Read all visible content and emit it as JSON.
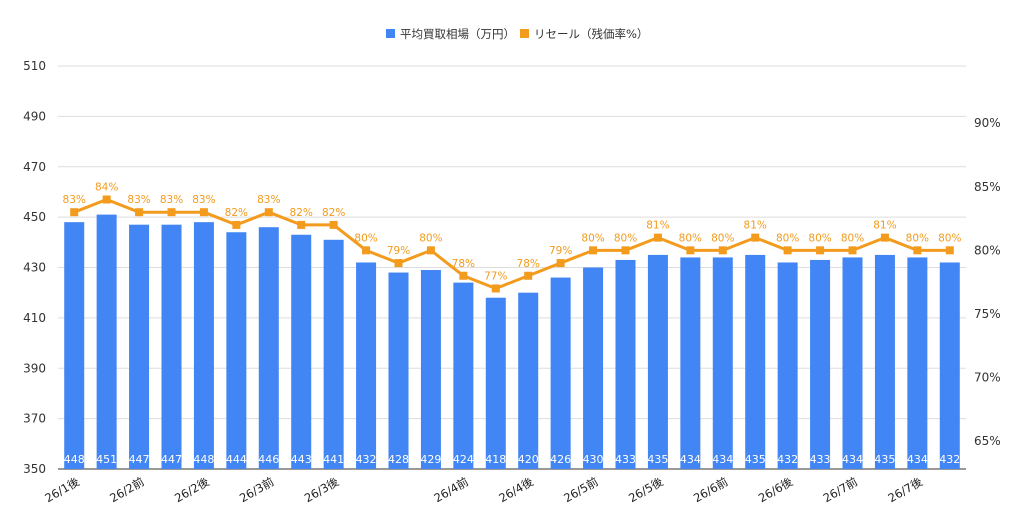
{
  "chart_data": {
    "type": "bar",
    "legend": {
      "position": "top",
      "entries": [
        {
          "label": "平均買取相場（万円）",
          "color": "#4285f4",
          "marker": "square"
        },
        {
          "label": "リセール（残価率%）",
          "color": "#f29b1d",
          "marker": "square"
        }
      ]
    },
    "categories": [
      "26/1後",
      "",
      "26/2前",
      "",
      "26/2後",
      "",
      "26/3前",
      "",
      "26/3後",
      "",
      "",
      "",
      "26/4前",
      "",
      "26/4後",
      "",
      "26/5前",
      "",
      "26/5後",
      "",
      "26/6前",
      "",
      "26/6後",
      "",
      "26/7前",
      "",
      "26/7後",
      ""
    ],
    "series": [
      {
        "name": "平均買取相場（万円）",
        "type": "bar",
        "axis": "left",
        "color": "#4285f4",
        "values": [
          448,
          451,
          447,
          447,
          448,
          444,
          446,
          443,
          441,
          432,
          428,
          429,
          424,
          418,
          420,
          426,
          430,
          433,
          435,
          434,
          434,
          435,
          432,
          433,
          434,
          435,
          434,
          432
        ],
        "labels": [
          "448",
          "451",
          "447",
          "447",
          "448",
          "444",
          "446",
          "443",
          "441",
          "432",
          "428",
          "429",
          "424",
          "418",
          "420",
          "426",
          "430",
          "433",
          "435",
          "434",
          "434",
          "435",
          "432",
          "433",
          "434",
          "435",
          "434",
          "432"
        ]
      },
      {
        "name": "リセール（残価率%）",
        "type": "line",
        "axis": "right",
        "color": "#f29b1d",
        "values": [
          83,
          84,
          83,
          83,
          83,
          82,
          83,
          82,
          82,
          80,
          79,
          80,
          78,
          77,
          78,
          79,
          80,
          80,
          81,
          80,
          80,
          81,
          80,
          80,
          80,
          81,
          80,
          80
        ],
        "labels": [
          "83%",
          "84%",
          "83%",
          "83%",
          "83%",
          "82%",
          "83%",
          "82%",
          "82%",
          "80%",
          "79%",
          "80%",
          "78%",
          "77%",
          "78%",
          "79%",
          "80%",
          "80%",
          "81%",
          "80%",
          "80%",
          "81%",
          "80%",
          "80%",
          "80%",
          "81%",
          "80%",
          "80%"
        ]
      }
    ],
    "y_left": {
      "min": 350,
      "max": 510,
      "ticks": [
        "350",
        "370",
        "390",
        "410",
        "430",
        "450",
        "470",
        "490",
        "510"
      ]
    },
    "y_right": {
      "min": 62.8,
      "max": 94.5,
      "ticks": [
        "65%",
        "70%",
        "75%",
        "80%",
        "85%",
        "90%"
      ],
      "tick_values": [
        65,
        70,
        75,
        80,
        85,
        90
      ]
    },
    "grid": true
  }
}
